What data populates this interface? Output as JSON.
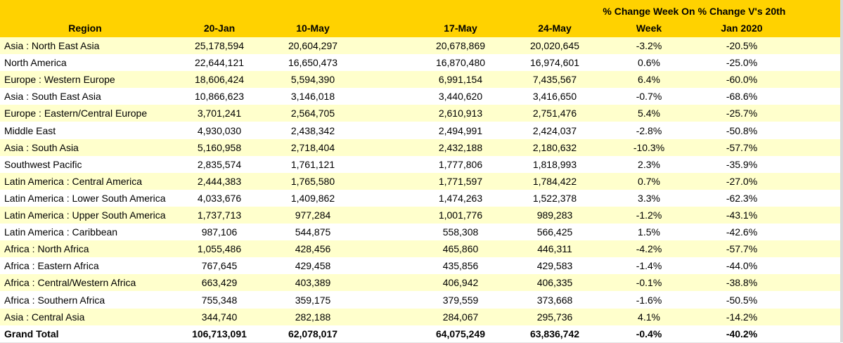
{
  "colors": {
    "header_bg": "#FFD200",
    "alt_row_bg": "#FFFFCC"
  },
  "header": {
    "region": "Region",
    "c1": "20-Jan",
    "c2": "10-May",
    "c3": "17-May",
    "c4": "24-May",
    "c5_line1": "% Change Week On",
    "c5_line2": "Week",
    "c6_line1": "% Change V's 20th",
    "c6_line2": "Jan 2020"
  },
  "rows": [
    [
      "Asia : North East Asia",
      "25,178,594",
      "20,604,297",
      "20,678,869",
      "20,020,645",
      "-3.2%",
      "-20.5%"
    ],
    [
      "North America",
      "22,644,121",
      "16,650,473",
      "16,870,480",
      "16,974,601",
      "0.6%",
      "-25.0%"
    ],
    [
      "Europe : Western Europe",
      "18,606,424",
      "5,594,390",
      "6,991,154",
      "7,435,567",
      "6.4%",
      "-60.0%"
    ],
    [
      "Asia : South East Asia",
      "10,866,623",
      "3,146,018",
      "3,440,620",
      "3,416,650",
      "-0.7%",
      "-68.6%"
    ],
    [
      "Europe : Eastern/Central Europe",
      "3,701,241",
      "2,564,705",
      "2,610,913",
      "2,751,476",
      "5.4%",
      "-25.7%"
    ],
    [
      "Middle East",
      "4,930,030",
      "2,438,342",
      "2,494,991",
      "2,424,037",
      "-2.8%",
      "-50.8%"
    ],
    [
      "Asia : South Asia",
      "5,160,958",
      "2,718,404",
      "2,432,188",
      "2,180,632",
      "-10.3%",
      "-57.7%"
    ],
    [
      "Southwest Pacific",
      "2,835,574",
      "1,761,121",
      "1,777,806",
      "1,818,993",
      "2.3%",
      "-35.9%"
    ],
    [
      "Latin America : Central America",
      "2,444,383",
      "1,765,580",
      "1,771,597",
      "1,784,422",
      "0.7%",
      "-27.0%"
    ],
    [
      "Latin America : Lower South America",
      "4,033,676",
      "1,409,862",
      "1,474,263",
      "1,522,378",
      "3.3%",
      "-62.3%"
    ],
    [
      "Latin America : Upper South America",
      "1,737,713",
      "977,284",
      "1,001,776",
      "989,283",
      "-1.2%",
      "-43.1%"
    ],
    [
      "Latin America : Caribbean",
      "987,106",
      "544,875",
      "558,308",
      "566,425",
      "1.5%",
      "-42.6%"
    ],
    [
      "Africa : North Africa",
      "1,055,486",
      "428,456",
      "465,860",
      "446,311",
      "-4.2%",
      "-57.7%"
    ],
    [
      "Africa : Eastern Africa",
      "767,645",
      "429,458",
      "435,856",
      "429,583",
      "-1.4%",
      "-44.0%"
    ],
    [
      "Africa : Central/Western Africa",
      "663,429",
      "403,389",
      "406,942",
      "406,335",
      "-0.1%",
      "-38.8%"
    ],
    [
      "Africa : Southern Africa",
      "755,348",
      "359,175",
      "379,559",
      "373,668",
      "-1.6%",
      "-50.5%"
    ],
    [
      "Asia : Central Asia",
      "344,740",
      "282,188",
      "284,067",
      "295,736",
      "4.1%",
      "-14.2%"
    ]
  ],
  "total": [
    "Grand Total",
    "106,713,091",
    "62,078,017",
    "64,075,249",
    "63,836,742",
    "-0.4%",
    "-40.2%"
  ]
}
